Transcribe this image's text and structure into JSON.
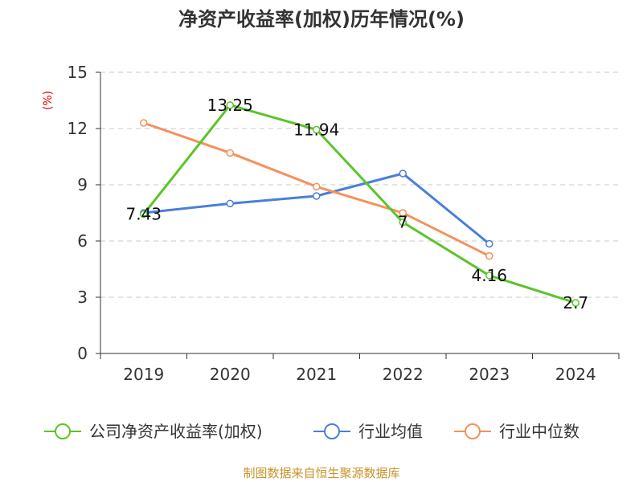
{
  "chart_data": {
    "type": "line",
    "title": "净资产收益率(加权)历年情况(%)",
    "ylabel": "(%)",
    "xlabel": "",
    "categories": [
      "2019",
      "2020",
      "2021",
      "2022",
      "2023",
      "2024"
    ],
    "ylim": [
      0,
      15
    ],
    "yticks": [
      0,
      3,
      6,
      9,
      12,
      15
    ],
    "grid": true,
    "legend_position": "bottom",
    "series": [
      {
        "name": "公司净资产收益率(加权)",
        "color": "#5cc42a",
        "values": [
          7.43,
          13.25,
          11.94,
          7,
          4.16,
          2.7
        ],
        "labels": [
          "7.43",
          "13.25",
          "11.94",
          "7",
          "4.16",
          "2.7"
        ]
      },
      {
        "name": "行业均值",
        "color": "#4a7fd9",
        "values": [
          7.5,
          8.0,
          8.4,
          9.6,
          5.85,
          null
        ]
      },
      {
        "name": "行业中位数",
        "color": "#f5915a",
        "values": [
          12.3,
          10.7,
          8.9,
          7.5,
          5.2,
          null
        ]
      }
    ],
    "source": "制图数据来自恒生聚源数据库"
  }
}
